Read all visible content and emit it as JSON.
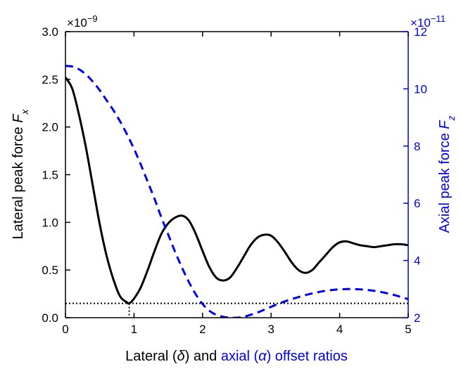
{
  "chart_data": {
    "type": "line",
    "xlabel": {
      "part1": "Lateral (",
      "delta": "δ",
      "part2": ") and ",
      "part3": "axial (",
      "alpha": "α",
      "part4": ") offset ratios"
    },
    "ylabel_left": {
      "text": "Lateral peak force ",
      "sym": "F",
      "sub": "x"
    },
    "ylabel_right": {
      "text": "Axial peak force ",
      "sym": "F",
      "sub": "z"
    },
    "left_exponent": {
      "base": "×10",
      "exp": "−9"
    },
    "right_exponent": {
      "base": "×10",
      "exp": "−11"
    },
    "xlim": [
      0,
      5
    ],
    "ylim_left": [
      0,
      3.0
    ],
    "ylim_right": [
      2,
      12
    ],
    "xticks": [
      0,
      1,
      2,
      3,
      4,
      5
    ],
    "xtick_labels": [
      "0",
      "1",
      "2",
      "3",
      "4",
      "5"
    ],
    "yticks_left": [
      0,
      0.5,
      1.0,
      1.5,
      2.0,
      2.5,
      3.0
    ],
    "ytick_labels_left": [
      "0.0",
      "0.5",
      "1.0",
      "1.5",
      "2.0",
      "2.5",
      "3.0"
    ],
    "yticks_right": [
      2,
      4,
      6,
      8,
      10,
      12
    ],
    "ytick_labels_right": [
      "2",
      "4",
      "6",
      "8",
      "10",
      "12"
    ],
    "grid": false,
    "series": [
      {
        "axis": "left",
        "color": "#000000",
        "style": "solid",
        "x": [
          0,
          0.1,
          0.2,
          0.3,
          0.4,
          0.5,
          0.6,
          0.7,
          0.8,
          0.9,
          0.93,
          1.0,
          1.1,
          1.2,
          1.3,
          1.4,
          1.5,
          1.6,
          1.7,
          1.8,
          1.9,
          2.0,
          2.1,
          2.2,
          2.3,
          2.4,
          2.5,
          2.6,
          2.7,
          2.8,
          2.9,
          3.0,
          3.1,
          3.2,
          3.3,
          3.4,
          3.5,
          3.6,
          3.7,
          3.8,
          3.9,
          4.0,
          4.1,
          4.2,
          4.3,
          4.4,
          4.5,
          4.6,
          4.7,
          4.8,
          4.9,
          5.0
        ],
        "y": [
          2.52,
          2.4,
          2.12,
          1.78,
          1.38,
          0.98,
          0.65,
          0.4,
          0.22,
          0.16,
          0.15,
          0.2,
          0.32,
          0.5,
          0.7,
          0.88,
          0.99,
          1.05,
          1.07,
          1.02,
          0.88,
          0.7,
          0.53,
          0.42,
          0.39,
          0.42,
          0.52,
          0.64,
          0.76,
          0.84,
          0.87,
          0.86,
          0.79,
          0.69,
          0.58,
          0.5,
          0.47,
          0.5,
          0.58,
          0.66,
          0.74,
          0.79,
          0.8,
          0.78,
          0.76,
          0.75,
          0.74,
          0.75,
          0.76,
          0.77,
          0.77,
          0.76
        ]
      },
      {
        "axis": "right",
        "color": "#0000ee",
        "style": "dashed",
        "x": [
          0,
          0.1,
          0.2,
          0.3,
          0.4,
          0.5,
          0.6,
          0.7,
          0.8,
          0.9,
          1.0,
          1.1,
          1.2,
          1.3,
          1.4,
          1.5,
          1.6,
          1.7,
          1.8,
          1.9,
          2.0,
          2.1,
          2.2,
          2.3,
          2.4,
          2.5,
          2.6,
          2.7,
          2.8,
          2.9,
          3.0,
          3.1,
          3.2,
          3.3,
          3.4,
          3.5,
          3.6,
          3.7,
          3.8,
          3.9,
          4.0,
          4.1,
          4.2,
          4.3,
          4.4,
          4.5,
          4.6,
          4.7,
          4.8,
          4.9,
          5.0
        ],
        "y": [
          10.8,
          10.78,
          10.68,
          10.5,
          10.25,
          9.95,
          9.6,
          9.25,
          8.85,
          8.4,
          7.9,
          7.35,
          6.75,
          6.15,
          5.5,
          4.9,
          4.3,
          3.75,
          3.25,
          2.82,
          2.48,
          2.24,
          2.1,
          2.03,
          2.0,
          2.0,
          2.03,
          2.1,
          2.18,
          2.28,
          2.38,
          2.48,
          2.57,
          2.65,
          2.72,
          2.79,
          2.85,
          2.9,
          2.94,
          2.97,
          2.99,
          3.0,
          3.0,
          2.99,
          2.97,
          2.94,
          2.9,
          2.85,
          2.79,
          2.72,
          2.65
        ]
      }
    ],
    "annotations": [
      {
        "type": "hline",
        "axis": "left",
        "y": 0.15,
        "style": "dotted",
        "color": "#000000"
      },
      {
        "type": "vline",
        "x": 0.93,
        "y_top": 0.15,
        "style": "dotted",
        "color": "#000000"
      }
    ]
  },
  "colors": {
    "left_axis": "#000000",
    "right_axis": "#0000ee"
  }
}
